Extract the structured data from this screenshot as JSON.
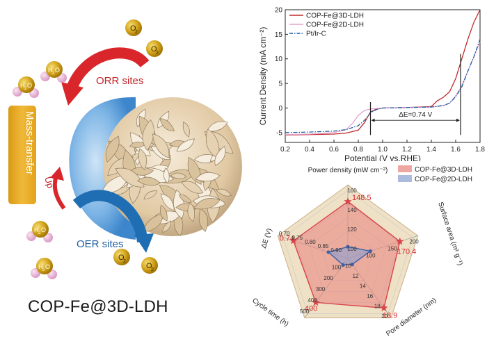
{
  "illustration": {
    "title": "COP-Fe@3D-LDH",
    "orr_label": "ORR sites",
    "oer_label": "OER sites",
    "mass_label": "Mass-transfer",
    "up_label": "Up",
    "o2_main": "O",
    "o2_sub": "2",
    "h2o_main": "H",
    "h2o_sub": "2",
    "h2o_end": "O",
    "colors": {
      "orr_arrow": "#d9262b",
      "oer_arrow": "#1f6eb3",
      "mass_box": "#e9a825",
      "o2_ball": "#c99a12",
      "h_ball": "#e8b6d8"
    }
  },
  "chart_data": [
    {
      "type": "line",
      "xlabel": "Potential (V vs.RHE)",
      "ylabel": "Current Density (mA cm⁻²)",
      "xlim": [
        0.2,
        1.8
      ],
      "ylim": [
        -7,
        20
      ],
      "xticks": [
        "0.2",
        "0.4",
        "0.6",
        "0.8",
        "1.0",
        "1.2",
        "1.4",
        "1.6",
        "1.8"
      ],
      "yticks": [
        "-5",
        "0",
        "5",
        "10",
        "15",
        "20"
      ],
      "legend_position": "top-left",
      "annotation": "ΔE=0.74 V",
      "series": [
        {
          "name": "COP-Fe@3D-LDH",
          "color": "#c0282b",
          "dash": "solid",
          "x": [
            0.2,
            0.4,
            0.6,
            0.7,
            0.8,
            0.85,
            0.9,
            0.95,
            1.0,
            1.2,
            1.4,
            1.45,
            1.5,
            1.55,
            1.6,
            1.65,
            1.7,
            1.75,
            1.8
          ],
          "y": [
            -5.5,
            -5.4,
            -5.3,
            -5.1,
            -4.5,
            -3.0,
            -0.8,
            -0.2,
            0.0,
            0.1,
            0.3,
            1.5,
            2.2,
            3.3,
            6.0,
            10.0,
            14.0,
            17.5,
            20.0
          ]
        },
        {
          "name": "COP-Fe@2D-LDH",
          "color": "#e3a3cf",
          "dash": "solid",
          "x": [
            0.2,
            0.4,
            0.6,
            0.7,
            0.75,
            0.8,
            0.85,
            0.9,
            1.0,
            1.2,
            1.4,
            1.5,
            1.55,
            1.6,
            1.65,
            1.7,
            1.75,
            1.8
          ],
          "y": [
            -5.4,
            -5.3,
            -5.0,
            -4.4,
            -3.2,
            -1.5,
            -0.5,
            -0.2,
            0.0,
            0.1,
            0.2,
            0.5,
            1.0,
            2.5,
            4.5,
            7.5,
            10.5,
            13.5
          ]
        },
        {
          "name": "Pt/Ir-C",
          "color": "#1f5fa0",
          "dash": "dashdot",
          "x": [
            0.2,
            0.4,
            0.6,
            0.7,
            0.8,
            0.85,
            0.9,
            0.95,
            1.0,
            1.2,
            1.4,
            1.5,
            1.55,
            1.6,
            1.65,
            1.7,
            1.75,
            1.8
          ],
          "y": [
            -5.0,
            -4.9,
            -4.7,
            -4.4,
            -3.6,
            -2.5,
            -1.0,
            -0.3,
            0.0,
            0.1,
            0.2,
            0.5,
            1.0,
            2.3,
            4.3,
            7.5,
            10.5,
            14.0
          ]
        }
      ]
    },
    {
      "type": "radar",
      "legend_position": "top-right",
      "axes": [
        {
          "label": "Power density (mW cm⁻²)",
          "ticks": [
            "100",
            "120",
            "140",
            "160"
          ],
          "range": [
            90,
            160
          ]
        },
        {
          "label": "Surface area (m² g⁻¹)",
          "ticks": [
            "100",
            "150",
            "200"
          ],
          "range": [
            50,
            200
          ]
        },
        {
          "label": "Pore diameter (nm)",
          "ticks": [
            "10",
            "12",
            "14",
            "16",
            "18",
            "20"
          ],
          "range": [
            9,
            20
          ]
        },
        {
          "label": "Cycle time (h)",
          "ticks": [
            "100",
            "200",
            "300",
            "400",
            "500"
          ],
          "range": [
            0,
            500
          ]
        },
        {
          "label": "ΔE (V)",
          "ticks": [
            "0.90",
            "0.85",
            "0.80",
            "0.75",
            "0.70"
          ],
          "range": [
            0.95,
            0.7
          ]
        }
      ],
      "series": [
        {
          "name": "COP-Fe@3D-LDH",
          "color": "#e8817e",
          "values": [
            148.5,
            170.4,
            18.9,
            400,
            0.74
          ],
          "value_labels": [
            "148.5",
            "170.4",
            "18.9",
            "400",
            "0.74"
          ]
        },
        {
          "name": "COP-Fe@2D-LDH",
          "color": "#8a9fd0",
          "values": [
            102,
            102,
            10.2,
            60,
            0.875
          ]
        }
      ]
    }
  ]
}
